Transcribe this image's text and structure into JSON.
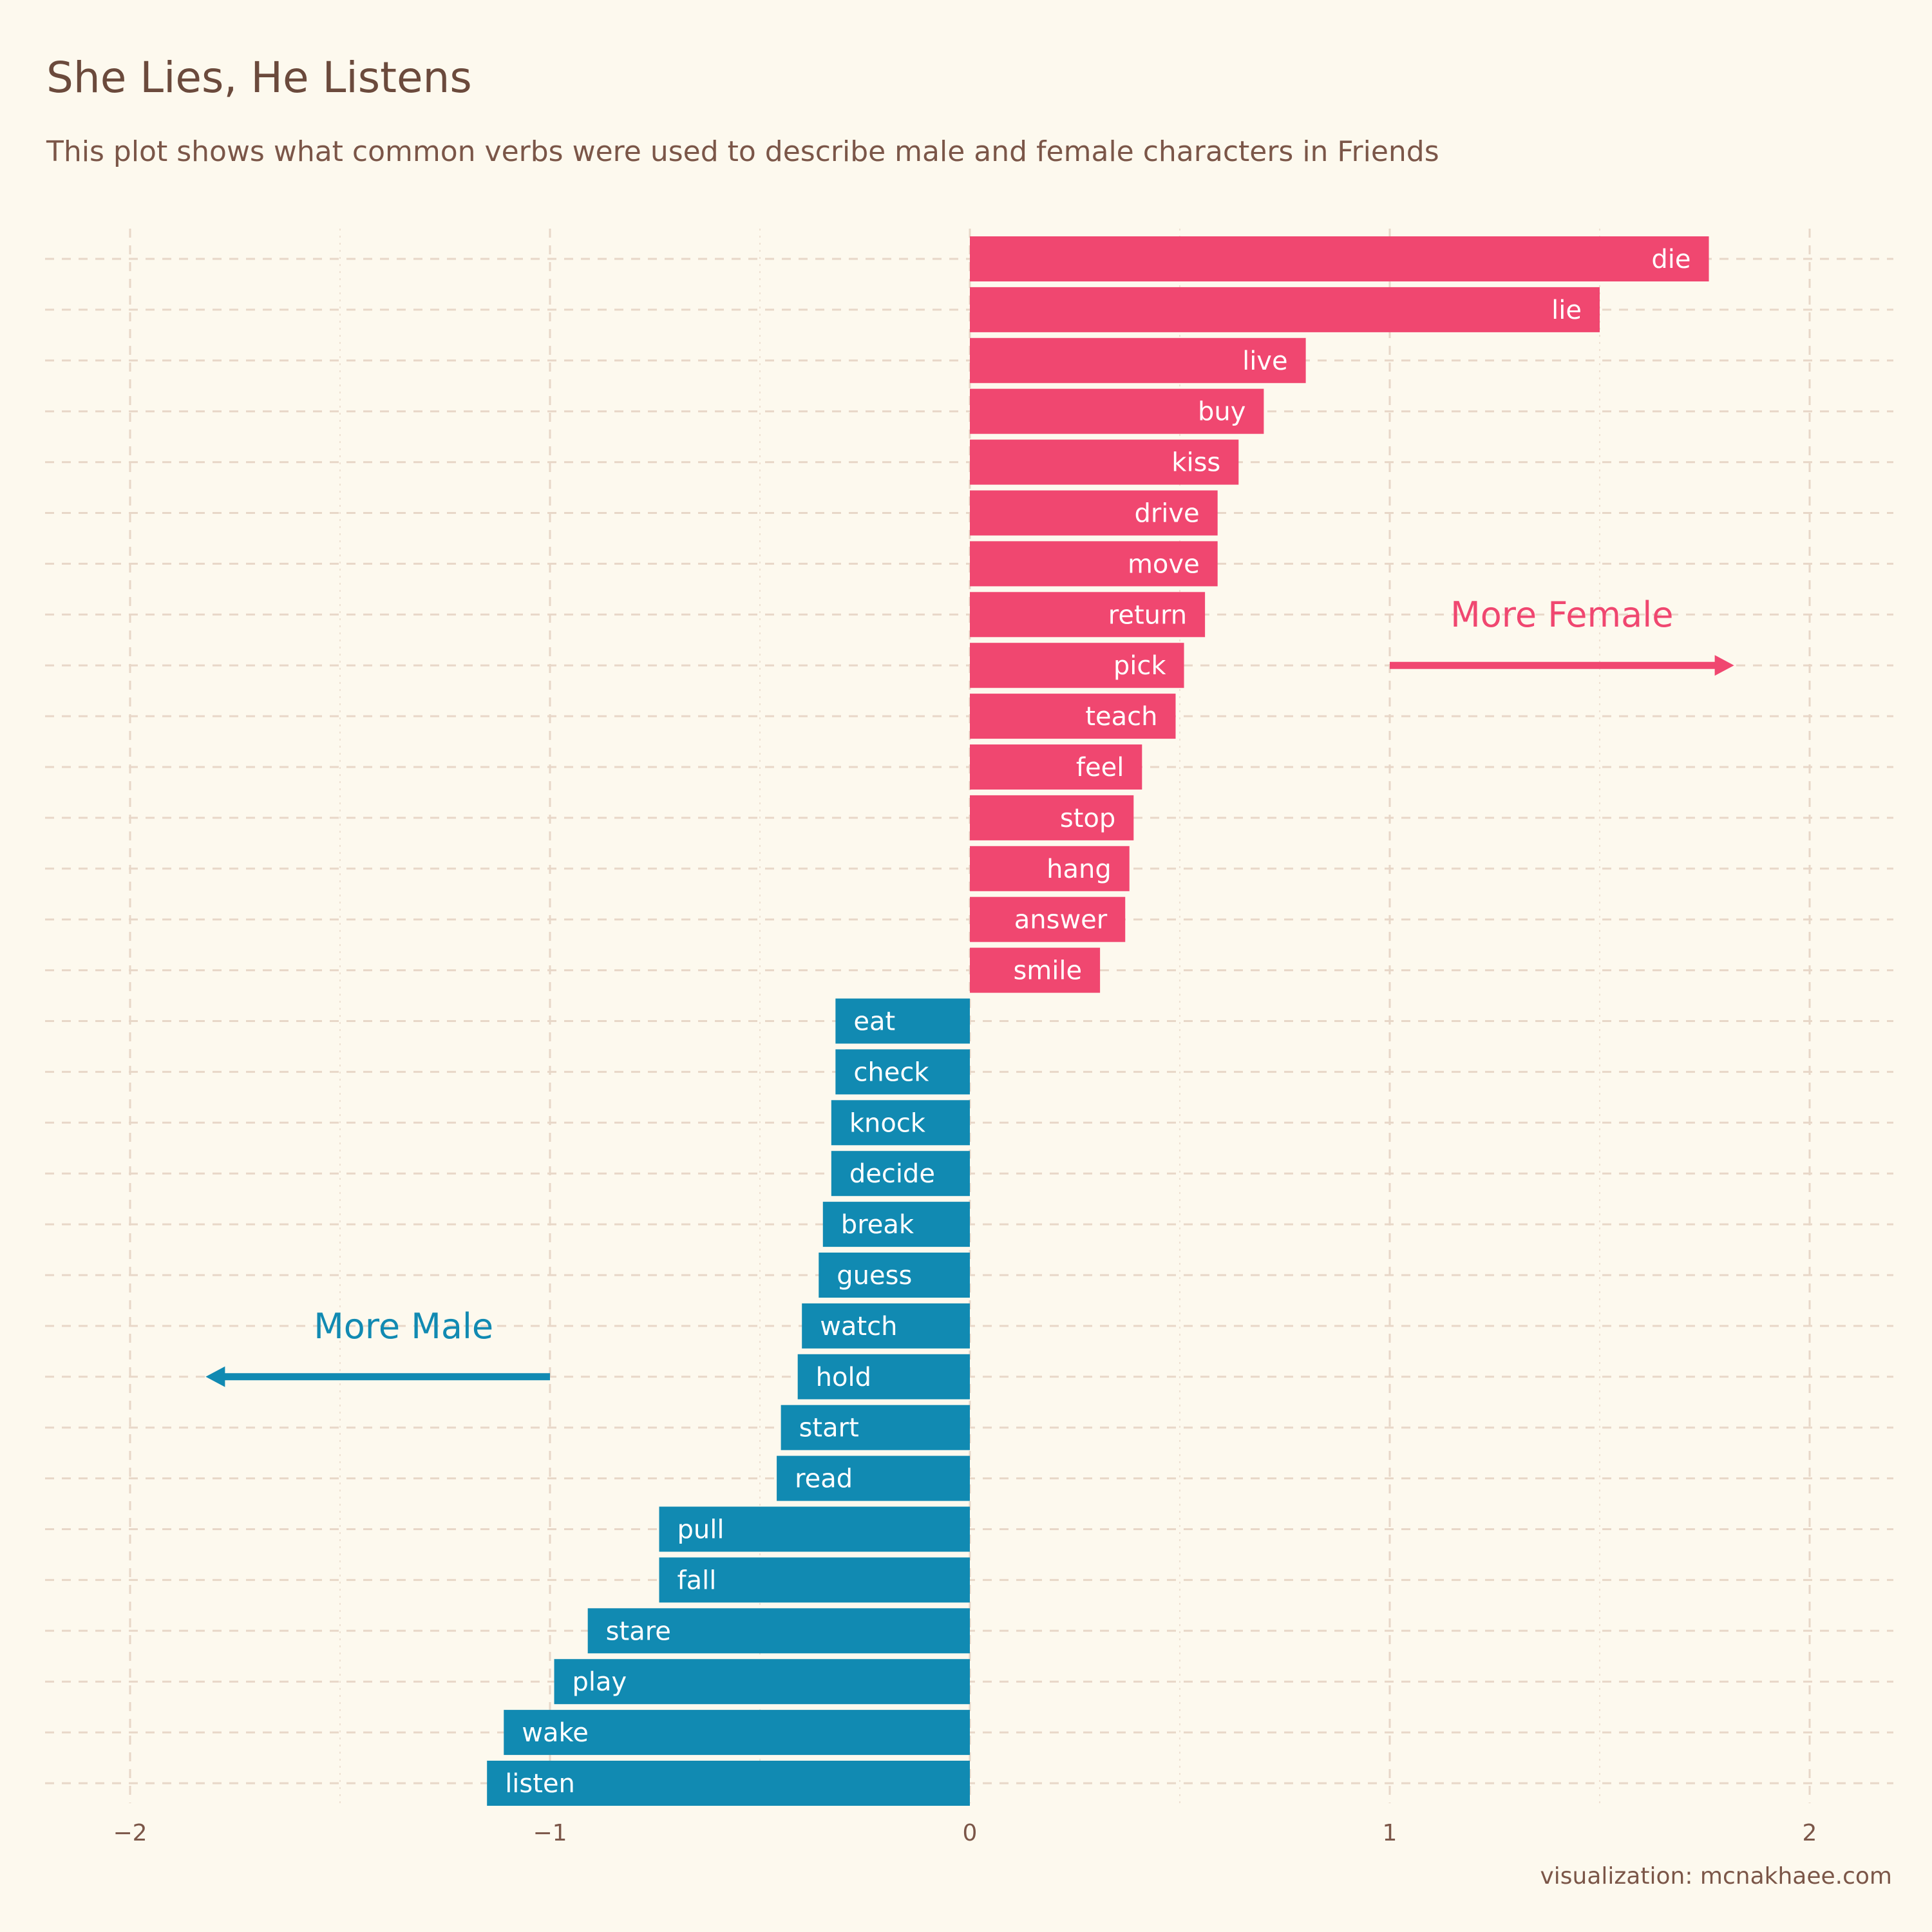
{
  "title": "She Lies, He Listens",
  "subtitle": "This plot shows what common verbs were used to describe male and female characters in Friends",
  "caption": "visualization: mcnakhaee.com",
  "colors": {
    "background": "#FDF9EE",
    "female": "#F04770",
    "male": "#118AB2",
    "grid": "#E8D7C8",
    "text": "#6B4A3C"
  },
  "annotations": {
    "female_label": "More Female",
    "male_label": "More Male",
    "female_arrow": {
      "from": 1,
      "to": 1.82,
      "verb": "pick"
    },
    "male_arrow": {
      "from": -1,
      "to": -1.82,
      "verb": "hold"
    }
  },
  "chart_data": {
    "type": "bar",
    "orientation": "horizontal",
    "xlim": [
      -2.2,
      2.2
    ],
    "xticks": [
      -2,
      -1,
      0,
      1,
      2
    ],
    "xtick_labels": [
      "−2",
      "−1",
      "0",
      "1",
      "2"
    ],
    "grid": "dashed",
    "categories": [
      "die",
      "lie",
      "live",
      "buy",
      "kiss",
      "drive",
      "move",
      "return",
      "pick",
      "teach",
      "feel",
      "stop",
      "hang",
      "answer",
      "smile",
      "eat",
      "check",
      "knock",
      "decide",
      "break",
      "guess",
      "watch",
      "hold",
      "start",
      "read",
      "pull",
      "fall",
      "stare",
      "play",
      "wake",
      "listen"
    ],
    "values": [
      1.76,
      1.5,
      0.8,
      0.7,
      0.64,
      0.59,
      0.59,
      0.56,
      0.51,
      0.49,
      0.41,
      0.39,
      0.38,
      0.37,
      0.31,
      -0.32,
      -0.32,
      -0.33,
      -0.33,
      -0.35,
      -0.36,
      -0.4,
      -0.41,
      -0.45,
      -0.46,
      -0.74,
      -0.74,
      -0.91,
      -0.99,
      -1.11,
      -1.15
    ],
    "groups": [
      "female",
      "female",
      "female",
      "female",
      "female",
      "female",
      "female",
      "female",
      "female",
      "female",
      "female",
      "female",
      "female",
      "female",
      "female",
      "male",
      "male",
      "male",
      "male",
      "male",
      "male",
      "male",
      "male",
      "male",
      "male",
      "male",
      "male",
      "male",
      "male",
      "male",
      "male"
    ]
  }
}
